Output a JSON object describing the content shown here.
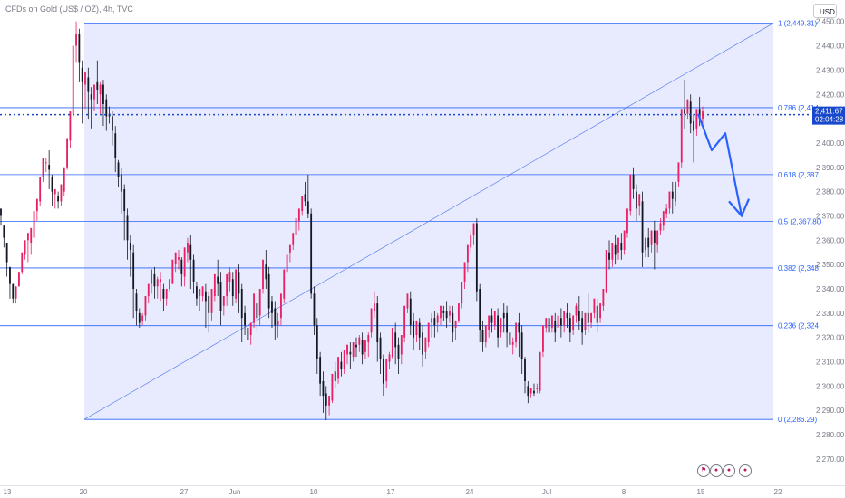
{
  "chart_data": {
    "type": "candlestick",
    "title": "CFDs on Gold (US$ / OZ), 4h, TVC",
    "currency": "USD",
    "y_ticks": [
      "2,270.00",
      "2,280.00",
      "2,290.00",
      "2,300.00",
      "2,310.00",
      "2,320.00",
      "2,330.00",
      "2,340.00",
      "2,350.00",
      "2,360.00",
      "2,370.00",
      "2,380.00",
      "2,390.00",
      "2,400.00",
      "2,410.00",
      "2,420.00",
      "2,430.00",
      "2,440.00",
      "2,450.00"
    ],
    "y_tick_values": [
      2270,
      2280,
      2290,
      2300,
      2310,
      2320,
      2330,
      2340,
      2350,
      2360,
      2370,
      2380,
      2390,
      2400,
      2410,
      2420,
      2430,
      2440,
      2450
    ],
    "ylim": [
      2264,
      2454
    ],
    "x_labels": [
      "13",
      "20",
      "27",
      "Jun",
      "10",
      "17",
      "24",
      "Jul",
      "8",
      "15",
      "22"
    ],
    "fibonacci": [
      {
        "label": "1 (2,449.31)",
        "value": 2449.31
      },
      {
        "label": "0.786 (2,414",
        "value": 2414.54
      },
      {
        "label": "0.618 (2,387",
        "value": 2387.0
      },
      {
        "label": "0.5 (2,367.80",
        "value": 2367.8
      },
      {
        "label": "0.382 (2,348",
        "value": 2348.6
      },
      {
        "label": "0.236 (2,324",
        "value": 2324.84
      },
      {
        "label": "0 (2,286.29)",
        "value": 2286.29
      }
    ],
    "current_price": {
      "value": 2411.67,
      "price_label": "2,411.67",
      "countdown": "02:04:28"
    },
    "trend_line": {
      "from": 2286.29,
      "to": 2449.31
    },
    "projection": [
      2412,
      2397,
      2404,
      2370,
      2377
    ],
    "candles": [
      [
        2373,
        2373,
        2370,
        2366
      ],
      [
        2366,
        2366,
        2361,
        2357
      ],
      [
        2359,
        2359,
        2351,
        2345
      ],
      [
        2349,
        2349,
        2342,
        2336
      ],
      [
        2342,
        2342,
        2336,
        2334
      ],
      [
        2336,
        2336,
        2341,
        2334
      ],
      [
        2341,
        2342,
        2347,
        2341
      ],
      [
        2347,
        2350,
        2355,
        2346
      ],
      [
        2354,
        2356,
        2360,
        2352
      ],
      [
        2360,
        2362,
        2363,
        2351
      ],
      [
        2359,
        2361,
        2365,
        2354
      ],
      [
        2361,
        2364,
        2372,
        2359
      ],
      [
        2372,
        2373,
        2377,
        2368
      ],
      [
        2376,
        2378,
        2386,
        2374
      ],
      [
        2386,
        2391,
        2394,
        2384
      ],
      [
        2392,
        2394,
        2392,
        2388
      ],
      [
        2391,
        2397,
        2389,
        2381
      ],
      [
        2386,
        2387,
        2380,
        2374
      ],
      [
        2379,
        2379,
        2381,
        2373
      ],
      [
        2378,
        2380,
        2376,
        2373
      ],
      [
        2376,
        2377,
        2383,
        2374
      ],
      [
        2380,
        2382,
        2390,
        2378
      ],
      [
        2390,
        2395,
        2402,
        2389
      ],
      [
        2401,
        2403,
        2413,
        2398
      ],
      [
        2412,
        2420,
        2440,
        2411
      ],
      [
        2440,
        2450,
        2445,
        2433
      ],
      [
        2445,
        2447,
        2433,
        2425
      ],
      [
        2431,
        2434,
        2425,
        2408
      ],
      [
        2424,
        2427,
        2429,
        2414
      ],
      [
        2427,
        2431,
        2421,
        2410
      ],
      [
        2420,
        2423,
        2418,
        2406
      ],
      [
        2418,
        2421,
        2424,
        2413
      ],
      [
        2425,
        2434,
        2422,
        2416
      ],
      [
        2420,
        2425,
        2424,
        2412
      ],
      [
        2424,
        2426,
        2416,
        2407
      ],
      [
        2418,
        2420,
        2411,
        2405
      ],
      [
        2412,
        2415,
        2411,
        2408
      ],
      [
        2411,
        2413,
        2405,
        2399
      ],
      [
        2404,
        2407,
        2394,
        2388
      ],
      [
        2392,
        2393,
        2386,
        2382
      ],
      [
        2387,
        2390,
        2380,
        2371
      ],
      [
        2381,
        2383,
        2372,
        2360
      ],
      [
        2370,
        2373,
        2360,
        2352
      ],
      [
        2359,
        2362,
        2356,
        2345
      ],
      [
        2355,
        2358,
        2340,
        2328
      ],
      [
        2338,
        2340,
        2331,
        2325
      ],
      [
        2330,
        2332,
        2326,
        2324
      ],
      [
        2327,
        2330,
        2329,
        2325
      ],
      [
        2329,
        2331,
        2337,
        2327
      ],
      [
        2337,
        2342,
        2342,
        2334
      ],
      [
        2342,
        2346,
        2348,
        2338
      ],
      [
        2346,
        2349,
        2341,
        2336
      ],
      [
        2341,
        2345,
        2344,
        2336
      ],
      [
        2343,
        2347,
        2344,
        2335
      ],
      [
        2340,
        2342,
        2336,
        2331
      ],
      [
        2336,
        2340,
        2340,
        2333
      ],
      [
        2340,
        2342,
        2344,
        2339
      ],
      [
        2342,
        2346,
        2352,
        2342
      ],
      [
        2350,
        2354,
        2355,
        2347
      ],
      [
        2352,
        2356,
        2353,
        2348
      ],
      [
        2352,
        2353,
        2346,
        2341
      ],
      [
        2345,
        2349,
        2357,
        2341
      ],
      [
        2355,
        2361,
        2359,
        2351
      ],
      [
        2358,
        2362,
        2352,
        2340
      ],
      [
        2352,
        2354,
        2343,
        2338
      ],
      [
        2341,
        2343,
        2336,
        2333
      ],
      [
        2337,
        2339,
        2340,
        2331
      ],
      [
        2337,
        2340,
        2341,
        2335
      ],
      [
        2339,
        2342,
        2335,
        2324
      ],
      [
        2337,
        2339,
        2330,
        2322
      ],
      [
        2330,
        2333,
        2340,
        2327
      ],
      [
        2337,
        2342,
        2346,
        2335
      ],
      [
        2345,
        2352,
        2342,
        2337
      ],
      [
        2343,
        2347,
        2331,
        2325
      ],
      [
        2333,
        2336,
        2337,
        2329
      ],
      [
        2337,
        2339,
        2346,
        2333
      ],
      [
        2343,
        2349,
        2347,
        2339
      ],
      [
        2344,
        2347,
        2337,
        2333
      ],
      [
        2336,
        2340,
        2348,
        2334
      ],
      [
        2347,
        2350,
        2338,
        2330
      ],
      [
        2340,
        2342,
        2328,
        2318
      ],
      [
        2330,
        2333,
        2325,
        2321
      ],
      [
        2324,
        2328,
        2319,
        2315
      ],
      [
        2321,
        2324,
        2326,
        2317
      ],
      [
        2326,
        2330,
        2338,
        2324
      ],
      [
        2334,
        2338,
        2328,
        2322
      ],
      [
        2329,
        2331,
        2340,
        2325
      ],
      [
        2340,
        2342,
        2352,
        2338
      ],
      [
        2350,
        2356,
        2344,
        2340
      ],
      [
        2346,
        2349,
        2332,
        2328
      ],
      [
        2335,
        2337,
        2330,
        2324
      ],
      [
        2332,
        2335,
        2325,
        2319
      ],
      [
        2325,
        2330,
        2327,
        2320
      ],
      [
        2328,
        2331,
        2338,
        2325
      ],
      [
        2336,
        2343,
        2348,
        2334
      ],
      [
        2347,
        2352,
        2354,
        2345
      ],
      [
        2355,
        2358,
        2358,
        2351
      ],
      [
        2358,
        2361,
        2363,
        2356
      ],
      [
        2362,
        2366,
        2369,
        2360
      ],
      [
        2368,
        2373,
        2373,
        2364
      ],
      [
        2372,
        2377,
        2378,
        2370
      ],
      [
        2379,
        2384,
        2376,
        2374
      ],
      [
        2376,
        2387,
        2371,
        2369
      ],
      [
        2371,
        2373,
        2338,
        2336
      ],
      [
        2338,
        2341,
        2325,
        2321
      ],
      [
        2325,
        2328,
        2311,
        2305
      ],
      [
        2312,
        2314,
        2301,
        2296
      ],
      [
        2302,
        2306,
        2296,
        2289
      ],
      [
        2297,
        2300,
        2292,
        2286
      ],
      [
        2292,
        2295,
        2296,
        2288
      ],
      [
        2294,
        2299,
        2305,
        2293
      ],
      [
        2306,
        2310,
        2302,
        2299
      ],
      [
        2303,
        2306,
        2312,
        2301
      ],
      [
        2310,
        2314,
        2307,
        2304
      ],
      [
        2307,
        2310,
        2315,
        2305
      ],
      [
        2313,
        2316,
        2317,
        2309
      ],
      [
        2314,
        2318,
        2313,
        2307
      ],
      [
        2312,
        2315,
        2318,
        2310
      ],
      [
        2317,
        2320,
        2316,
        2312
      ],
      [
        2317,
        2321,
        2320,
        2314
      ],
      [
        2319,
        2322,
        2313,
        2309
      ],
      [
        2314,
        2318,
        2319,
        2311
      ],
      [
        2318,
        2322,
        2321,
        2312
      ],
      [
        2322,
        2327,
        2332,
        2320
      ],
      [
        2331,
        2339,
        2334,
        2328
      ],
      [
        2334,
        2337,
        2318,
        2310
      ],
      [
        2320,
        2322,
        2311,
        2305
      ],
      [
        2311,
        2313,
        2301,
        2296
      ],
      [
        2302,
        2305,
        2311,
        2299
      ],
      [
        2310,
        2314,
        2313,
        2307
      ],
      [
        2312,
        2316,
        2324,
        2311
      ],
      [
        2322,
        2326,
        2316,
        2309
      ],
      [
        2317,
        2320,
        2311,
        2305
      ],
      [
        2313,
        2317,
        2321,
        2309
      ],
      [
        2320,
        2324,
        2333,
        2318
      ],
      [
        2332,
        2337,
        2338,
        2330
      ],
      [
        2336,
        2339,
        2325,
        2321
      ],
      [
        2327,
        2330,
        2320,
        2315
      ],
      [
        2321,
        2325,
        2327,
        2318
      ],
      [
        2326,
        2328,
        2320,
        2315
      ],
      [
        2322,
        2325,
        2313,
        2308
      ],
      [
        2314,
        2318,
        2320,
        2311
      ],
      [
        2318,
        2323,
        2326,
        2316
      ],
      [
        2326,
        2330,
        2328,
        2320
      ],
      [
        2328,
        2331,
        2325,
        2320
      ],
      [
        2326,
        2330,
        2329,
        2322
      ],
      [
        2328,
        2331,
        2333,
        2325
      ],
      [
        2331,
        2333,
        2330,
        2327
      ],
      [
        2331,
        2335,
        2328,
        2324
      ],
      [
        2329,
        2333,
        2331,
        2326
      ],
      [
        2330,
        2333,
        2322,
        2318
      ],
      [
        2324,
        2326,
        2327,
        2319
      ],
      [
        2327,
        2330,
        2334,
        2326
      ],
      [
        2334,
        2338,
        2343,
        2332
      ],
      [
        2343,
        2347,
        2351,
        2340
      ],
      [
        2351,
        2353,
        2358,
        2347
      ],
      [
        2357,
        2364,
        2362,
        2355
      ],
      [
        2362,
        2367,
        2367,
        2358
      ],
      [
        2367,
        2369,
        2339,
        2335
      ],
      [
        2340,
        2342,
        2323,
        2318
      ],
      [
        2323,
        2327,
        2318,
        2314
      ],
      [
        2318,
        2320,
        2325,
        2316
      ],
      [
        2323,
        2327,
        2329,
        2320
      ],
      [
        2329,
        2332,
        2326,
        2322
      ],
      [
        2325,
        2328,
        2331,
        2323
      ],
      [
        2329,
        2332,
        2320,
        2316
      ],
      [
        2322,
        2325,
        2328,
        2320
      ],
      [
        2330,
        2334,
        2328,
        2322
      ],
      [
        2330,
        2333,
        2322,
        2316
      ],
      [
        2322,
        2325,
        2317,
        2313
      ],
      [
        2317,
        2320,
        2318,
        2313
      ],
      [
        2318,
        2322,
        2326,
        2316
      ],
      [
        2326,
        2330,
        2322,
        2312
      ],
      [
        2322,
        2325,
        2311,
        2305
      ],
      [
        2311,
        2312,
        2302,
        2297
      ],
      [
        2300,
        2302,
        2296,
        2293
      ],
      [
        2297,
        2299,
        2299,
        2295
      ],
      [
        2298,
        2301,
        2297,
        2296
      ],
      [
        2299,
        2301,
        2299,
        2297
      ],
      [
        2298,
        2302,
        2314,
        2297
      ],
      [
        2314,
        2318,
        2325,
        2312
      ],
      [
        2324,
        2328,
        2328,
        2322
      ],
      [
        2328,
        2332,
        2322,
        2318
      ],
      [
        2324,
        2327,
        2329,
        2322
      ],
      [
        2327,
        2330,
        2322,
        2318
      ],
      [
        2324,
        2326,
        2329,
        2322
      ],
      [
        2328,
        2332,
        2325,
        2320
      ],
      [
        2325,
        2328,
        2331,
        2322
      ],
      [
        2330,
        2334,
        2328,
        2324
      ],
      [
        2328,
        2330,
        2322,
        2318
      ],
      [
        2323,
        2327,
        2329,
        2321
      ],
      [
        2329,
        2334,
        2333,
        2326
      ],
      [
        2331,
        2337,
        2327,
        2323
      ],
      [
        2328,
        2331,
        2322,
        2317
      ],
      [
        2323,
        2325,
        2330,
        2321
      ],
      [
        2330,
        2338,
        2326,
        2322
      ],
      [
        2326,
        2330,
        2330,
        2324
      ],
      [
        2330,
        2333,
        2336,
        2328
      ],
      [
        2333,
        2336,
        2326,
        2322
      ],
      [
        2328,
        2331,
        2334,
        2326
      ],
      [
        2333,
        2337,
        2340,
        2331
      ],
      [
        2339,
        2346,
        2356,
        2338
      ],
      [
        2355,
        2360,
        2352,
        2348
      ],
      [
        2352,
        2358,
        2359,
        2349
      ],
      [
        2358,
        2362,
        2354,
        2350
      ],
      [
        2355,
        2359,
        2361,
        2352
      ],
      [
        2359,
        2363,
        2356,
        2352
      ],
      [
        2356,
        2360,
        2364,
        2354
      ],
      [
        2363,
        2368,
        2373,
        2361
      ],
      [
        2372,
        2384,
        2387,
        2370
      ],
      [
        2387,
        2390,
        2381,
        2377
      ],
      [
        2380,
        2383,
        2373,
        2368
      ],
      [
        2374,
        2377,
        2379,
        2370
      ],
      [
        2376,
        2380,
        2355,
        2349
      ],
      [
        2356,
        2360,
        2361,
        2353
      ],
      [
        2361,
        2365,
        2357,
        2353
      ],
      [
        2358,
        2362,
        2364,
        2355
      ],
      [
        2364,
        2368,
        2359,
        2348
      ],
      [
        2358,
        2362,
        2364,
        2355
      ],
      [
        2364,
        2369,
        2367,
        2362
      ],
      [
        2366,
        2370,
        2372,
        2364
      ],
      [
        2371,
        2375,
        2373,
        2369
      ],
      [
        2373,
        2378,
        2380,
        2371
      ],
      [
        2380,
        2384,
        2377,
        2371
      ],
      [
        2376,
        2380,
        2384,
        2374
      ],
      [
        2384,
        2388,
        2392,
        2382
      ],
      [
        2392,
        2402,
        2414,
        2390
      ],
      [
        2414,
        2426,
        2412,
        2406
      ],
      [
        2412,
        2418,
        2418,
        2410
      ],
      [
        2417,
        2420,
        2408,
        2404
      ],
      [
        2409,
        2412,
        2405,
        2392
      ],
      [
        2406,
        2411,
        2414,
        2403
      ],
      [
        2414,
        2419,
        2410,
        2407
      ],
      [
        2410,
        2415,
        2413,
        2408
      ]
    ]
  }
}
